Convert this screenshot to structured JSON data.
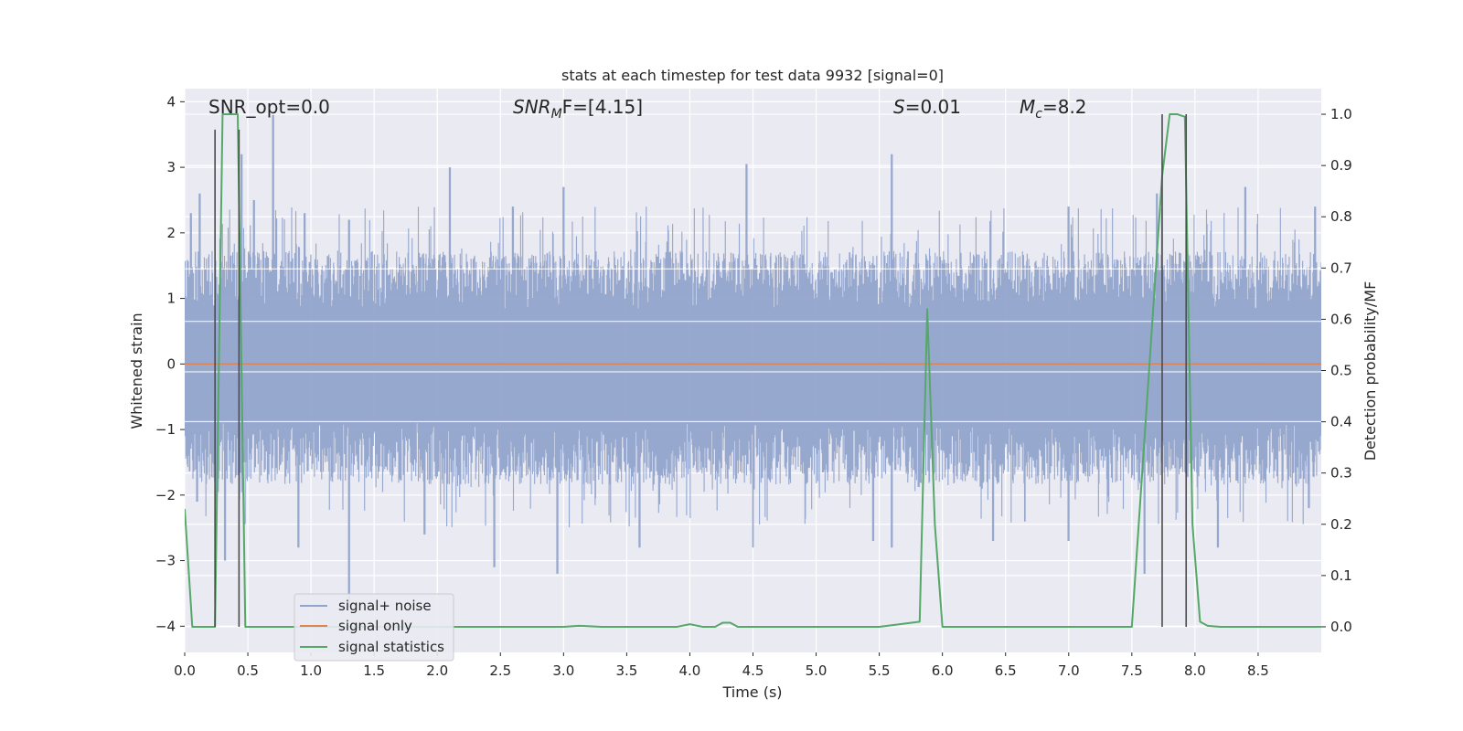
{
  "chart_data": {
    "type": "line",
    "title": "stats at each timestep for test data 9932 [signal=0]",
    "xlabel": "Time (s)",
    "ylabel_left": "Whitened strain",
    "ylabel_right": "Detection probability/MF",
    "xlim": [
      0.0,
      9.0
    ],
    "ylim_left": [
      -4.4,
      4.2
    ],
    "ylim_right": [
      -0.05,
      1.05
    ],
    "xticks": [
      0.0,
      0.5,
      1.0,
      1.5,
      2.0,
      2.5,
      3.0,
      3.5,
      4.0,
      4.5,
      5.0,
      5.5,
      6.0,
      6.5,
      7.0,
      7.5,
      8.0,
      8.5
    ],
    "xtick_labels": [
      "0.0",
      "0.5",
      "1.0",
      "1.5",
      "2.0",
      "2.5",
      "3.0",
      "3.5",
      "4.0",
      "4.5",
      "5.0",
      "5.5",
      "6.0",
      "6.5",
      "7.0",
      "7.5",
      "8.0",
      "8.5"
    ],
    "yticks_left": [
      -4,
      -3,
      -2,
      -1,
      0,
      1,
      2,
      3,
      4
    ],
    "ytick_labels_left": [
      "−4",
      "−3",
      "−2",
      "−1",
      "0",
      "1",
      "2",
      "3",
      "4"
    ],
    "yticks_right": [
      0.0,
      0.1,
      0.2,
      0.3,
      0.4,
      0.5,
      0.6,
      0.7,
      0.8,
      0.9,
      1.0
    ],
    "ytick_labels_right": [
      "0.0",
      "0.1",
      "0.2",
      "0.3",
      "0.4",
      "0.5",
      "0.6",
      "0.7",
      "0.8",
      "0.9",
      "1.0"
    ],
    "annotations": {
      "snr_opt": "SNR_opt=0.0",
      "snr_mf_symbol": "SNR",
      "snr_mf_sub": "M",
      "snr_mf_tail": "F=[4.15]",
      "s_symbol": "S",
      "s_value": "=0.01",
      "mc_symbol": "M",
      "mc_sub": "c",
      "mc_value": "=8.2"
    },
    "noise_envelope": {
      "typical_lower": -1.6,
      "typical_upper": 1.5,
      "peaks_upper": [
        [
          0.05,
          2.3
        ],
        [
          0.12,
          2.6
        ],
        [
          0.45,
          3.2
        ],
        [
          0.55,
          2.5
        ],
        [
          0.7,
          3.8
        ],
        [
          0.95,
          2.3
        ],
        [
          1.3,
          2.2
        ],
        [
          2.1,
          3.0
        ],
        [
          2.6,
          2.4
        ],
        [
          3.0,
          2.7
        ],
        [
          4.45,
          3.05
        ],
        [
          5.6,
          3.2
        ],
        [
          7.0,
          2.4
        ],
        [
          7.7,
          2.6
        ],
        [
          8.4,
          2.7
        ],
        [
          8.95,
          2.4
        ]
      ],
      "peaks_lower": [
        [
          0.1,
          -2.1
        ],
        [
          0.32,
          -3.0
        ],
        [
          0.9,
          -2.8
        ],
        [
          1.3,
          -3.7
        ],
        [
          1.9,
          -2.6
        ],
        [
          2.45,
          -3.1
        ],
        [
          2.95,
          -3.2
        ],
        [
          3.6,
          -2.8
        ],
        [
          4.5,
          -2.8
        ],
        [
          5.45,
          -2.7
        ],
        [
          5.6,
          -2.8
        ],
        [
          6.4,
          -2.7
        ],
        [
          7.0,
          -2.7
        ],
        [
          7.6,
          -3.2
        ],
        [
          8.18,
          -2.8
        ],
        [
          8.9,
          -2.2
        ]
      ]
    },
    "series": [
      {
        "name": "signal+ noise",
        "color": "#92a4cc",
        "axis": "left",
        "style": "dense-noise"
      },
      {
        "name": "signal only",
        "color": "#dd8452",
        "axis": "left",
        "x": [
          0.0,
          9.0
        ],
        "y": [
          0.0,
          0.0
        ]
      },
      {
        "name": "signal statistics",
        "color": "#55a868",
        "axis": "right",
        "x": [
          0.0,
          0.06,
          0.12,
          0.18,
          0.24,
          0.3,
          0.36,
          0.42,
          0.48,
          0.54,
          1.0,
          2.0,
          3.0,
          3.12,
          3.3,
          3.9,
          4.0,
          4.1,
          4.2,
          4.26,
          4.32,
          4.38,
          4.5,
          5.0,
          5.5,
          5.82,
          5.88,
          5.94,
          6.0,
          6.5,
          7.0,
          7.5,
          7.74,
          7.8,
          7.86,
          7.92,
          7.98,
          8.04,
          8.1,
          8.2,
          8.5,
          9.0
        ],
        "y": [
          0.23,
          0.0,
          0.0,
          0.0,
          0.0,
          1.0,
          1.0,
          1.0,
          0.0,
          0.0,
          0.0,
          0.0,
          0.0,
          0.002,
          0.0,
          0.0,
          0.005,
          0.0,
          0.0,
          0.008,
          0.008,
          0.0,
          0.0,
          0.0,
          0.0,
          0.01,
          0.62,
          0.2,
          0.0,
          0.0,
          0.0,
          0.0,
          0.88,
          1.0,
          1.0,
          0.995,
          0.2,
          0.01,
          0.002,
          0.0,
          0.0,
          0.0
        ]
      }
    ],
    "vlines": [
      {
        "x": 0.24,
        "y0": 0.0,
        "y1": 0.97
      },
      {
        "x": 0.43,
        "y0": 0.0,
        "y1": 0.97
      },
      {
        "x": 7.74,
        "y0": 0.0,
        "y1": 1.0
      },
      {
        "x": 7.93,
        "y0": 0.0,
        "y1": 1.0
      }
    ],
    "vline_color": "#4c4c4c",
    "legend_position": "lower-left",
    "grid": true,
    "plot_background": "#eaeaf2"
  }
}
